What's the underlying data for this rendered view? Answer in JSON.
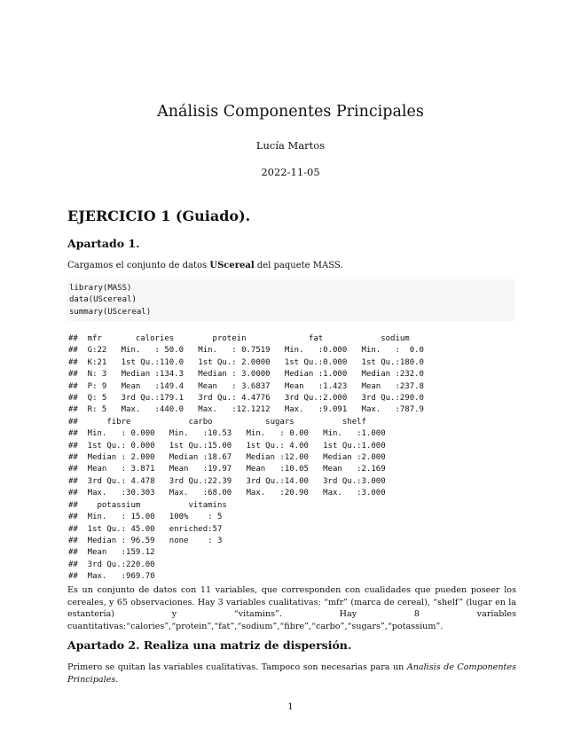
{
  "title": "Análisis Componentes Principales",
  "author": "Lucía Martos",
  "date": "2022-11-05",
  "section": "EJERCICIO 1 (Guiado).",
  "apartado1": {
    "heading": "Apartado 1.",
    "intro_pre": "Cargamos el conjunto de datos ",
    "intro_bold": "UScereal",
    "intro_post": " del paquete MASS."
  },
  "code": [
    "library(MASS)",
    "data(UScereal)",
    "summary(UScereal)"
  ],
  "output": [
    "##  mfr       calories        protein             fat            sodium     ",
    "##  G:22   Min.   : 50.0   Min.   : 0.7519   Min.   :0.000   Min.   :  0.0  ",
    "##  K:21   1st Qu.:110.0   1st Qu.: 2.0000   1st Qu.:0.000   1st Qu.:180.0  ",
    "##  N: 3   Median :134.3   Median : 3.0000   Median :1.000   Median :232.0  ",
    "##  P: 9   Mean   :149.4   Mean   : 3.6837   Mean   :1.423   Mean   :237.8  ",
    "##  Q: 5   3rd Qu.:179.1   3rd Qu.: 4.4776   3rd Qu.:2.000   3rd Qu.:290.0  ",
    "##  R: 5   Max.   :440.0   Max.   :12.1212   Max.   :9.091   Max.   :787.9  ",
    "##      fibre            carbo           sugars          shelf      ",
    "##  Min.   : 0.000   Min.   :10.53   Min.   : 0.00   Min.   :1.000  ",
    "##  1st Qu.: 0.000   1st Qu.:15.00   1st Qu.: 4.00   1st Qu.:1.000  ",
    "##  Median : 2.000   Median :18.67   Median :12.00   Median :2.000  ",
    "##  Mean   : 3.871   Mean   :19.97   Mean   :10.05   Mean   :2.169  ",
    "##  3rd Qu.: 4.478   3rd Qu.:22.39   3rd Qu.:14.00   3rd Qu.:3.000  ",
    "##  Max.   :30.303   Max.   :68.00   Max.   :20.90   Max.   :3.000  ",
    "##    potassium          vitamins ",
    "##  Min.   : 15.00   100%    : 5  ",
    "##  1st Qu.: 45.00   enriched:57  ",
    "##  Median : 96.59   none    : 3  ",
    "##  Mean   :159.12                ",
    "##  3rd Qu.:220.00                ",
    "##  Max.   :969.70                "
  ],
  "paragraph1": "Es un conjunto de datos con 11 variables, que corresponden con cualidades que pueden poseer los cereales, y 65 observaciones. Hay 3 variables cualitativas: “mfr” (marca de cereal), “shelf” (lugar en la estantería) y “vitamins”. Hay 8 variables cuantitativas:“calories”,“protein”,“fat”,“sodium”,“fibre”,“carbo”,“sugars”,“potassium”.",
  "apartado2": {
    "heading": "Apartado 2.  Realiza una matriz de dispersión.",
    "text_pre": "Primero se quitan las variables cualitativas.  Tampoco son necesarias para un ",
    "text_italic": "Analisis de Componentes Principales",
    "text_post": "."
  },
  "page_number": "1"
}
